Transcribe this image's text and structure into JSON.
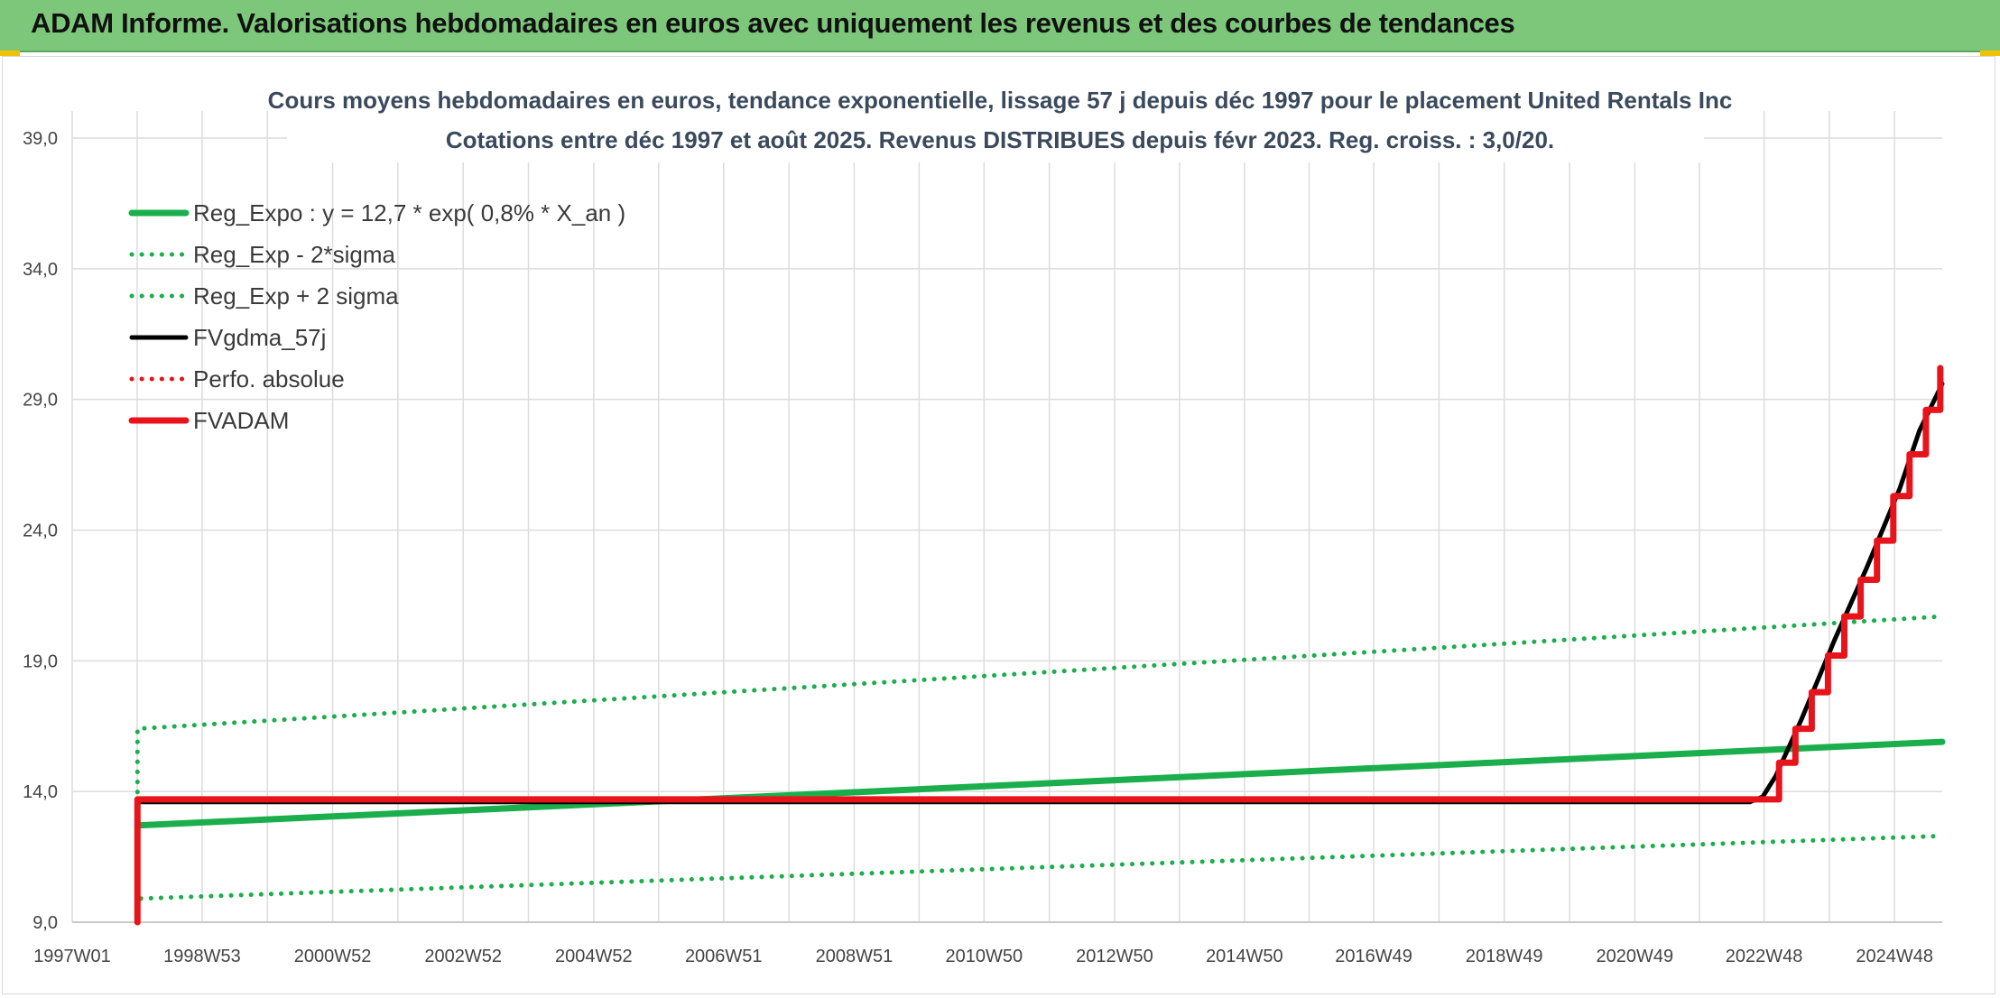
{
  "report": {
    "header_title": "ADAM Informe. Valorisations hebdomadaires en euros avec uniquement les revenus et des courbes de tendances"
  },
  "colors": {
    "header_bg": "#7cc77a",
    "green": "#1aae4c",
    "black": "#000000",
    "red": "#e8141b",
    "grid": "#dcdcdc"
  },
  "chart_data": {
    "type": "line",
    "title_lines": [
      "Cours moyens hebdomadaires en euros, tendance exponentielle, lissage 57 j depuis déc 1997 pour le placement United Rentals Inc",
      "Cotations entre déc 1997 et août 2025. Revenus DISTRIBUES depuis févr 2023. Reg. croiss. : 3,0/20."
    ],
    "xlabel": "",
    "ylabel": "",
    "x_range": [
      1997.0,
      2025.65
    ],
    "ylim": [
      9.0,
      39.0
    ],
    "y_ticks": [
      9,
      14,
      19,
      24,
      29,
      34,
      39
    ],
    "y_tick_labels": [
      "9,0",
      "14,0",
      "19,0",
      "24,0",
      "29,0",
      "34,0",
      "39,0"
    ],
    "x_ticks": [
      1997.0,
      1998.99,
      2000.99,
      2002.99,
      2004.99,
      2006.98,
      2008.98,
      2010.97,
      2012.97,
      2014.96,
      2016.94,
      2018.94,
      2020.94,
      2022.92,
      2024.92
    ],
    "x_tick_labels": [
      "1997W01",
      "1998W53",
      "2000W52",
      "2002W52",
      "2004W52",
      "2006W51",
      "2008W51",
      "2010W50",
      "2012W50",
      "2014W50",
      "2016W49",
      "2018W49",
      "2020W49",
      "2022W48",
      "2024W48"
    ],
    "grid": true,
    "legend_position": "top-left",
    "series": [
      {
        "name": "Reg_Expo : y = 12,7 * exp( 0,8% *  X_an )",
        "color": "#1aae4c",
        "style": "solid",
        "width": 7,
        "x": [
          1998.0,
          2025.65
        ],
        "y": [
          12.7,
          15.9
        ]
      },
      {
        "name": "Reg_Exp - 2*sigma",
        "color": "#1aae4c",
        "style": "dotted",
        "width": 5,
        "x": [
          1998.0,
          1998.0,
          2025.65
        ],
        "y": [
          13.6,
          9.9,
          12.3
        ]
      },
      {
        "name": "Reg_Exp + 2 sigma",
        "color": "#1aae4c",
        "style": "dotted",
        "width": 5,
        "x": [
          1998.0,
          1998.0,
          2025.65
        ],
        "y": [
          13.6,
          16.4,
          20.7
        ]
      },
      {
        "name": "FVgdma_57j",
        "color": "#000000",
        "style": "solid",
        "width": 5,
        "x": [
          1998.0,
          2022.7,
          2022.9,
          2023.1,
          2023.5,
          2024.0,
          2024.5,
          2025.0,
          2025.3,
          2025.65
        ],
        "y": [
          13.6,
          13.6,
          13.8,
          14.6,
          16.8,
          19.8,
          22.6,
          25.6,
          27.8,
          29.6
        ]
      },
      {
        "name": "Perfo. absolue",
        "color": "#e8141b",
        "style": "dotted",
        "width": 4,
        "x": [],
        "y": []
      },
      {
        "name": "FVADAM",
        "color": "#e8141b",
        "style": "solid",
        "width": 7,
        "x": [
          1998.0,
          1998.0,
          2023.15,
          2023.15,
          2023.4,
          2023.4,
          2023.65,
          2023.65,
          2023.9,
          2023.9,
          2024.15,
          2024.15,
          2024.4,
          2024.4,
          2024.65,
          2024.65,
          2024.9,
          2024.9,
          2025.15,
          2025.15,
          2025.4,
          2025.4,
          2025.62,
          2025.62
        ],
        "y": [
          9.0,
          13.7,
          13.7,
          15.1,
          15.1,
          16.4,
          16.4,
          17.8,
          17.8,
          19.2,
          19.2,
          20.7,
          20.7,
          22.1,
          22.1,
          23.6,
          23.6,
          25.3,
          25.3,
          26.9,
          26.9,
          28.6,
          28.6,
          30.2
        ]
      }
    ]
  }
}
